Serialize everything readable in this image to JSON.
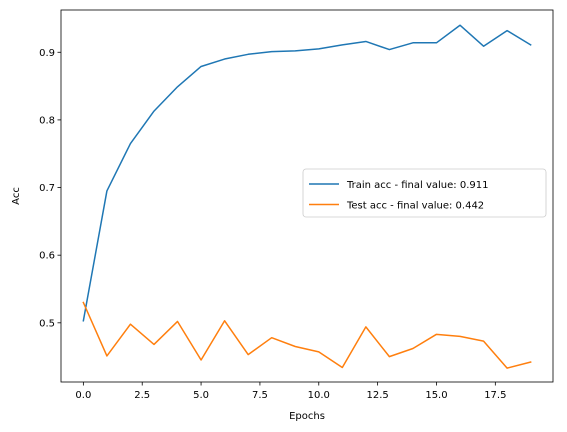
{
  "chart_data": {
    "type": "line",
    "title": "",
    "xlabel": "Epochs",
    "ylabel": "Acc",
    "xlim": [
      -0.95,
      19.95
    ],
    "ylim": [
      0.4125,
      0.9625
    ],
    "x_ticks": [
      0.0,
      2.5,
      5.0,
      7.5,
      10.0,
      12.5,
      15.0,
      17.5
    ],
    "x_tick_labels": [
      "0.0",
      "2.5",
      "5.0",
      "7.5",
      "10.0",
      "12.5",
      "15.0",
      "17.5"
    ],
    "y_ticks": [
      0.5,
      0.6,
      0.7,
      0.8,
      0.9
    ],
    "y_tick_labels": [
      "0.5",
      "0.6",
      "0.7",
      "0.8",
      "0.9"
    ],
    "grid": false,
    "legend_position": "center-right",
    "x": [
      0,
      1,
      2,
      3,
      4,
      5,
      6,
      7,
      8,
      9,
      10,
      11,
      12,
      13,
      14,
      15,
      16,
      17,
      18,
      19
    ],
    "series": [
      {
        "name": "Train acc - final value: 0.911",
        "color": "#1f77b4",
        "values": [
          0.503,
          0.695,
          0.765,
          0.813,
          0.849,
          0.879,
          0.89,
          0.897,
          0.901,
          0.902,
          0.905,
          0.911,
          0.916,
          0.904,
          0.914,
          0.914,
          0.94,
          0.909,
          0.932,
          0.911
        ]
      },
      {
        "name": "Test acc - final value: 0.442",
        "color": "#ff7f0e",
        "values": [
          0.53,
          0.451,
          0.498,
          0.468,
          0.502,
          0.445,
          0.503,
          0.453,
          0.478,
          0.465,
          0.457,
          0.434,
          0.494,
          0.45,
          0.462,
          0.483,
          0.48,
          0.473,
          0.433,
          0.442
        ]
      }
    ]
  }
}
